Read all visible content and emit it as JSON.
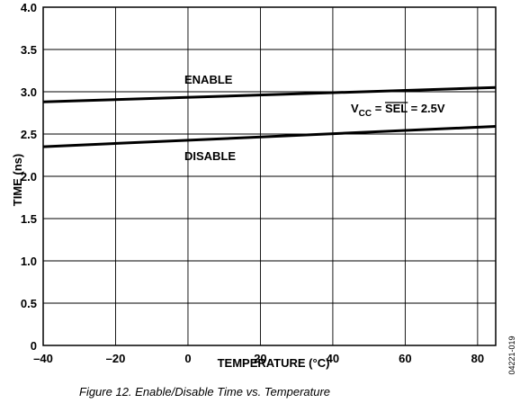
{
  "chart_data": {
    "type": "line",
    "xlabel": "TEMPERATURE (°C)",
    "ylabel": "TIME (ns)",
    "xlim": [
      -40,
      85
    ],
    "ylim": [
      0,
      4.0
    ],
    "x_ticks": [
      -40,
      -20,
      0,
      20,
      40,
      60,
      80
    ],
    "x_tick_labels": [
      "–40",
      "–20",
      "0",
      "20",
      "40",
      "60",
      "80"
    ],
    "y_ticks": [
      0,
      0.5,
      1.0,
      1.5,
      2.0,
      2.5,
      3.0,
      3.5,
      4.0
    ],
    "y_tick_labels": [
      "0",
      "0.5",
      "1.0",
      "1.5",
      "2.0",
      "2.5",
      "3.0",
      "3.5",
      "4.0"
    ],
    "grid": true,
    "series": [
      {
        "name": "ENABLE",
        "x": [
          -40,
          85
        ],
        "y": [
          2.88,
          3.05
        ]
      },
      {
        "name": "DISABLE",
        "x": [
          -40,
          85
        ],
        "y": [
          2.35,
          2.59
        ]
      }
    ],
    "annotation": {
      "v": "V",
      "cc": "CC",
      "eq1": " = ",
      "sel": "SEL",
      "eq2": " = 2.5V"
    }
  },
  "caption": "Figure 12. Enable/Disable Time vs. Temperature",
  "figure_id": "04221-019"
}
